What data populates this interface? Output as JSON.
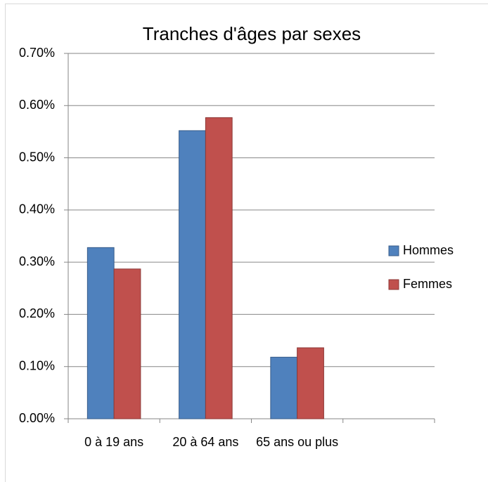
{
  "chart_data": {
    "type": "bar",
    "title": "Tranches d'âges par sexes",
    "categories": [
      "0 à 19 ans",
      "20 à 64 ans",
      "65 ans ou plus",
      null
    ],
    "series": [
      {
        "name": "Hommes",
        "color": "#4f81bd",
        "values": [
          0.328,
          0.552,
          0.118,
          null
        ]
      },
      {
        "name": "Femmes",
        "color": "#c0504d",
        "values": [
          0.287,
          0.577,
          0.136,
          null
        ]
      }
    ],
    "ylim": [
      0,
      0.7
    ],
    "yticks": [
      {
        "value": 0,
        "label": "0.00%"
      },
      {
        "value": 0.1,
        "label": "0.10%"
      },
      {
        "value": 0.2,
        "label": "0.20%"
      },
      {
        "value": 0.3,
        "label": "0.30%"
      },
      {
        "value": 0.4,
        "label": "0.40%"
      },
      {
        "value": 0.5,
        "label": "0.50%"
      },
      {
        "value": 0.6,
        "label": "0.60%"
      },
      {
        "value": 0.7,
        "label": "0.70%"
      }
    ],
    "grid": true,
    "legend": "right"
  }
}
